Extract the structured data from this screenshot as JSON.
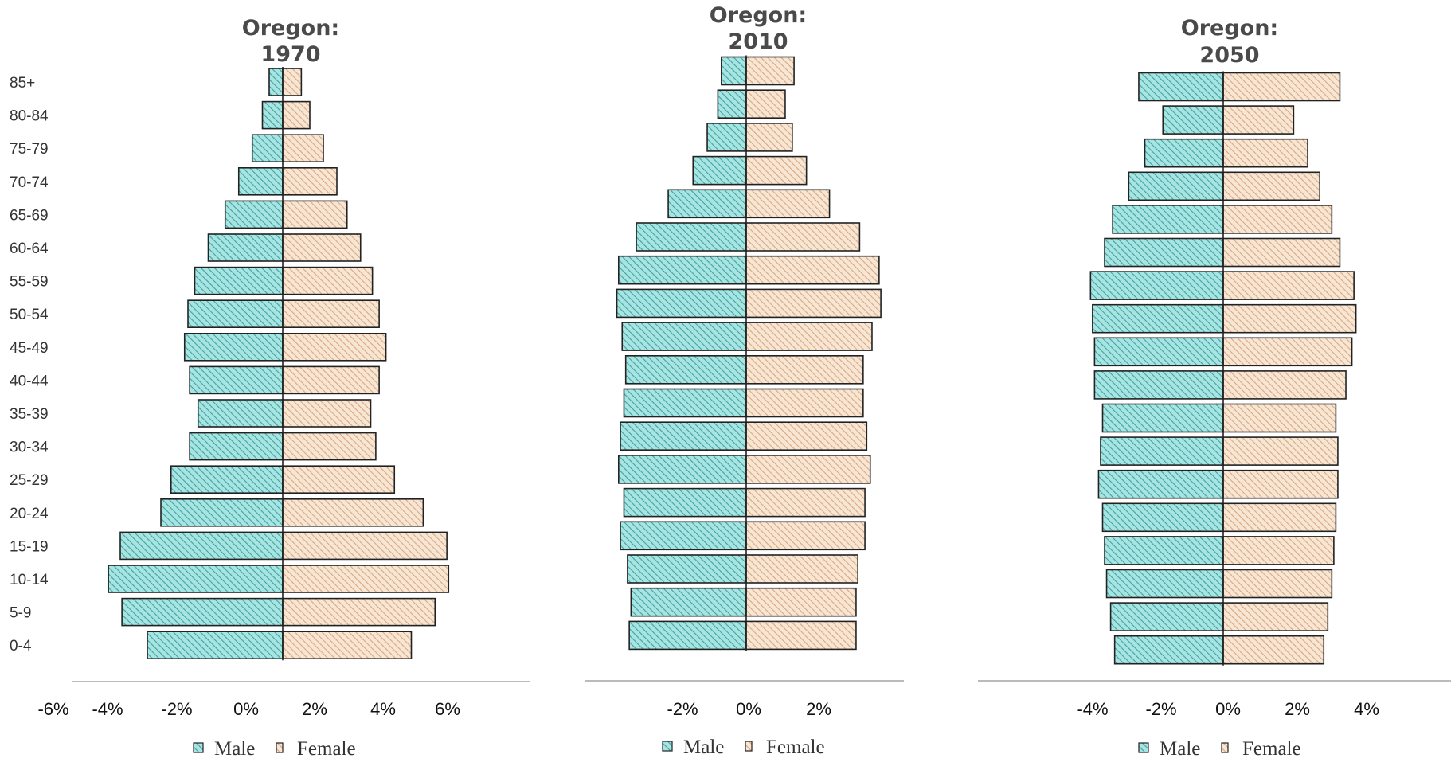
{
  "colors": {
    "male_fill": "#a8e4e2",
    "male_hatch": "#3fa3a0",
    "female_fill": "#f8e6d4",
    "female_hatch": "#d7a880",
    "bar_stroke": "#222222",
    "title": "#4a4a4a"
  },
  "chart_data": [
    {
      "type": "bar",
      "orientation": "horizontal",
      "title": "Oregon:\n1970",
      "categories": [
        "85+",
        "80-84",
        "75-79",
        "70-74",
        "65-69",
        "60-64",
        "55-59",
        "50-54",
        "45-49",
        "40-44",
        "35-39",
        "30-34",
        "25-29",
        "20-24",
        "15-19",
        "10-14",
        "5-9",
        "0-4"
      ],
      "series": [
        {
          "name": "Male",
          "values": [
            -0.4,
            -0.6,
            -0.9,
            -1.3,
            -1.7,
            -2.2,
            -2.6,
            -2.8,
            -2.9,
            -2.75,
            -2.5,
            -2.75,
            -3.3,
            -3.6,
            -4.8,
            -5.15,
            -4.75,
            -4.0
          ]
        },
        {
          "name": "Female",
          "values": [
            0.55,
            0.8,
            1.2,
            1.6,
            1.9,
            2.3,
            2.65,
            2.85,
            3.05,
            2.85,
            2.6,
            2.75,
            3.3,
            4.15,
            4.85,
            4.9,
            4.5,
            3.8
          ]
        }
      ],
      "xticks": [
        "-6%",
        "-4%",
        "-2%",
        "0%",
        "2%",
        "4%",
        "6%"
      ],
      "legend": [
        "Male",
        "Female"
      ],
      "legend_position": "bottom",
      "grid": false
    },
    {
      "type": "bar",
      "orientation": "horizontal",
      "title": "Oregon:\n2010",
      "categories": [
        "85+",
        "80-84",
        "75-79",
        "70-74",
        "65-69",
        "60-64",
        "55-59",
        "50-54",
        "45-49",
        "40-44",
        "35-39",
        "30-34",
        "25-29",
        "20-24",
        "15-19",
        "10-14",
        "5-9",
        "0-4"
      ],
      "series": [
        {
          "name": "Male",
          "values": [
            -0.7,
            -0.8,
            -1.1,
            -1.5,
            -2.2,
            -3.1,
            -3.6,
            -3.65,
            -3.5,
            -3.4,
            -3.45,
            -3.55,
            -3.6,
            -3.45,
            -3.55,
            -3.35,
            -3.25,
            -3.3
          ]
        },
        {
          "name": "Female",
          "values": [
            1.35,
            1.1,
            1.3,
            1.7,
            2.35,
            3.2,
            3.75,
            3.8,
            3.55,
            3.3,
            3.3,
            3.4,
            3.5,
            3.35,
            3.35,
            3.15,
            3.1,
            3.1
          ]
        }
      ],
      "xticks": [
        "-2%",
        "0%",
        "2%"
      ],
      "legend": [
        "Male",
        "Female"
      ],
      "legend_position": "bottom",
      "grid": false
    },
    {
      "type": "bar",
      "orientation": "horizontal",
      "title": "Oregon:\n2050",
      "categories": [
        "85+",
        "80-84",
        "75-79",
        "70-74",
        "65-69",
        "60-64",
        "55-59",
        "50-54",
        "45-49",
        "40-44",
        "35-39",
        "30-34",
        "25-29",
        "20-24",
        "15-19",
        "10-14",
        "5-9",
        "0-4"
      ],
      "series": [
        {
          "name": "Male",
          "values": [
            -2.1,
            -1.5,
            -1.95,
            -2.35,
            -2.75,
            -2.95,
            -3.3,
            -3.25,
            -3.2,
            -3.2,
            -3.0,
            -3.05,
            -3.1,
            -3.0,
            -2.95,
            -2.9,
            -2.8,
            -2.7
          ]
        },
        {
          "name": "Female",
          "values": [
            2.9,
            1.75,
            2.1,
            2.4,
            2.7,
            2.9,
            3.25,
            3.3,
            3.2,
            3.05,
            2.8,
            2.85,
            2.85,
            2.8,
            2.75,
            2.7,
            2.6,
            2.5
          ]
        }
      ],
      "xticks": [
        "-4%",
        "-2%",
        "0%",
        "2%",
        "4%"
      ],
      "legend": [
        "Male",
        "Female"
      ],
      "legend_position": "bottom",
      "grid": false
    }
  ]
}
